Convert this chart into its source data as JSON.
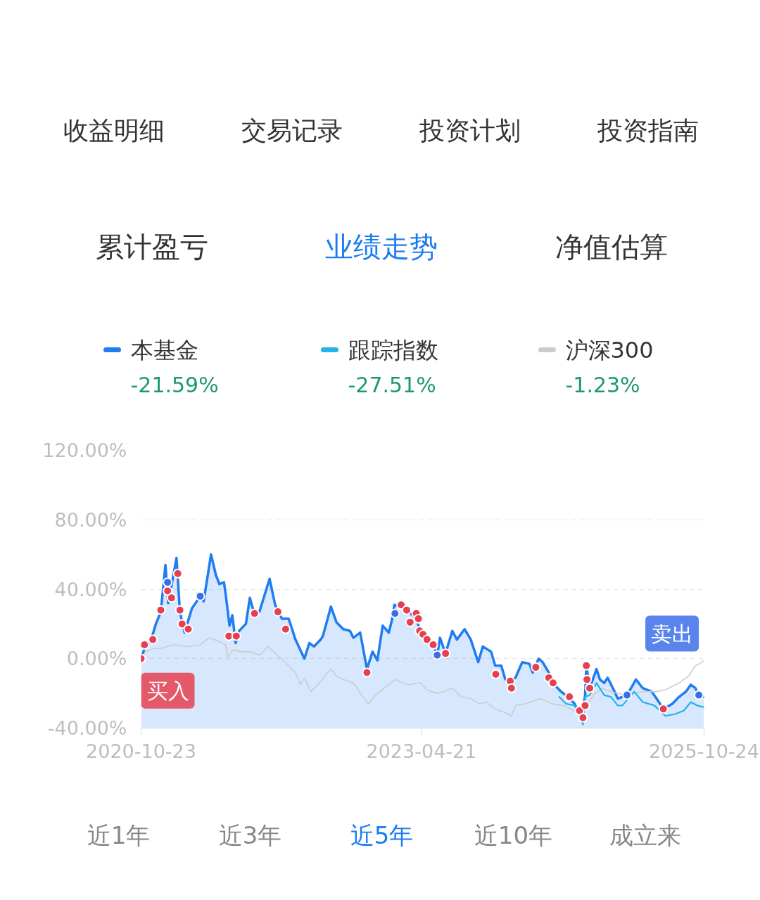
{
  "chart_data": {
    "type": "line",
    "title": "业绩走势",
    "annotations": [
      "收益明细",
      "交易记录",
      "投资计划",
      "投资指南",
      "累计盈亏",
      "净值估算",
      "-21.59%",
      "-27.51%",
      "-1.23%",
      "近1年",
      "近3年",
      "近5年",
      "近10年",
      "成立来",
      {
        "text": "买入",
        "x": "2020-10-23",
        "y": 0
      },
      {
        "text": "卖出",
        "x": "2025-10-07",
        "y": -21
      }
    ],
    "xlim": [
      "2020-10-23",
      "2025-10-24"
    ],
    "xticks": [
      "2020-10-23",
      "2023-04-21",
      "2025-10-24"
    ],
    "ylim": [
      -40,
      120
    ],
    "yticks": [
      {
        "value": -40,
        "label": "-40.00%"
      },
      {
        "value": 0,
        "label": "0.00%"
      },
      {
        "value": 40,
        "label": "40.00%"
      },
      {
        "value": 80,
        "label": "80.00%"
      },
      {
        "value": 120,
        "label": "120.00%"
      }
    ],
    "grid": "y",
    "legend": "top",
    "series": [
      {
        "name": "本基金",
        "type": "area",
        "color": "#1f7cf2",
        "x": [
          "2020-10-23",
          "2020-11-07",
          "2020-11-23",
          "2020-12-10",
          "2020-12-26",
          "2021-01-10",
          "2021-01-19",
          "2021-02-15",
          "2021-02-26",
          "2021-03-13",
          "2021-04-06",
          "2021-05-03",
          "2021-05-14",
          "2021-06-07",
          "2021-06-23",
          "2021-07-04",
          "2021-07-19",
          "2021-07-26",
          "2021-08-06",
          "2021-08-15",
          "2021-08-26",
          "2021-09-06",
          "2021-09-28",
          "2021-10-11",
          "2021-10-22",
          "2021-11-11",
          "2021-12-14",
          "2022-01-01",
          "2022-01-23",
          "2022-02-14",
          "2022-03-08",
          "2022-04-06",
          "2022-04-22",
          "2022-05-07",
          "2022-05-29",
          "2022-06-05",
          "2022-07-01",
          "2022-07-19",
          "2022-08-10",
          "2022-09-01",
          "2022-09-12",
          "2022-10-04",
          "2022-10-26",
          "2022-11-13",
          "2022-11-29",
          "2022-12-16",
          "2023-01-05",
          "2023-01-16",
          "2023-01-23",
          "2023-02-14",
          "2023-03-04",
          "2023-04-04",
          "2023-04-17",
          "2023-05-09",
          "2023-05-29",
          "2023-06-11",
          "2023-06-20",
          "2023-07-08",
          "2023-07-30",
          "2023-08-14",
          "2023-09-08",
          "2023-09-28",
          "2023-10-22",
          "2023-11-06",
          "2023-12-03",
          "2023-12-16",
          "2024-01-05",
          "2024-01-18",
          "2024-02-03",
          "2024-02-20",
          "2024-03-13",
          "2024-04-05",
          "2024-04-16",
          "2024-05-05",
          "2024-05-18",
          "2024-06-07",
          "2024-06-25",
          "2024-07-17",
          "2024-08-08",
          "2024-08-30",
          "2024-09-22",
          "2024-10-03",
          "2024-10-07",
          "2024-10-18",
          "2024-11-09",
          "2024-11-20",
          "2024-12-04",
          "2024-12-15",
          "2025-01-04",
          "2025-01-17",
          "2025-02-01",
          "2025-02-16",
          "2025-03-17",
          "2025-04-08",
          "2025-05-07",
          "2025-05-23",
          "2025-06-14",
          "2025-07-13",
          "2025-08-04",
          "2025-08-26",
          "2025-09-11",
          "2025-09-26",
          "2025-10-07",
          "2025-10-24"
        ],
        "values": [
          0,
          8,
          10,
          20,
          27,
          54,
          32,
          58,
          27,
          15,
          29,
          36,
          33,
          60,
          48,
          43,
          44,
          35,
          19,
          25,
          9,
          16,
          20,
          35,
          28,
          27,
          46,
          31,
          23,
          23,
          11,
          0,
          9,
          7,
          11,
          13,
          30,
          21,
          17,
          16,
          12,
          15,
          -6,
          4,
          -1,
          19,
          15,
          23,
          31,
          30,
          28,
          23,
          16,
          11,
          8,
          2,
          12,
          3,
          16,
          11,
          17,
          11,
          -2,
          7,
          4,
          -4,
          -4,
          -12,
          -13,
          -11,
          -2,
          -3,
          -8,
          0,
          -2,
          -8,
          -15,
          -19,
          -22,
          -26,
          -35,
          -21,
          -4,
          -17,
          -6,
          -12,
          -14,
          -11,
          -18,
          -23,
          -22,
          -21,
          -12,
          -17,
          -19,
          -23,
          -29,
          -26,
          -22,
          -19,
          -15,
          -17,
          -21,
          -22
        ]
      },
      {
        "name": "跟踪指数",
        "color": "#24b3ea",
        "x": [
          "2024-07-11",
          "2024-08-02",
          "2024-08-30",
          "2024-09-26",
          "2024-10-03",
          "2024-10-18",
          "2024-11-09",
          "2024-12-04",
          "2024-12-26",
          "2025-01-17",
          "2025-02-01",
          "2025-03-11",
          "2025-04-08",
          "2025-05-16",
          "2025-06-20",
          "2025-07-21",
          "2025-08-19",
          "2025-09-11",
          "2025-10-02",
          "2025-10-24"
        ],
        "values": [
          -22,
          -26,
          -27,
          -38,
          -22,
          -21,
          -14,
          -21,
          -22,
          -27,
          -27,
          -19,
          -25,
          -27,
          -33,
          -32,
          -30,
          -25,
          -27,
          -28
        ]
      },
      {
        "name": "沪深300",
        "color": "#cccccc",
        "x": [
          "2020-10-23",
          "2020-11-07",
          "2020-12-06",
          "2020-12-28",
          "2021-02-03",
          "2021-03-20",
          "2021-05-03",
          "2021-06-01",
          "2021-07-02",
          "2021-07-24",
          "2021-07-31",
          "2021-08-18",
          "2021-09-14",
          "2021-10-11",
          "2021-11-11",
          "2021-12-10",
          "2022-01-08",
          "2022-02-08",
          "2022-03-08",
          "2022-03-24",
          "2022-04-06",
          "2022-04-28",
          "2022-05-20",
          "2022-06-20",
          "2022-07-01",
          "2022-07-19",
          "2022-08-10",
          "2022-09-12",
          "2022-10-09",
          "2022-10-31",
          "2022-11-22",
          "2022-12-21",
          "2023-01-27",
          "2023-02-18",
          "2023-03-12",
          "2023-04-17",
          "2023-05-09",
          "2023-06-09",
          "2023-07-01",
          "2023-07-30",
          "2023-08-28",
          "2023-09-28",
          "2023-10-26",
          "2023-11-17",
          "2023-12-16",
          "2024-01-16",
          "2024-02-07",
          "2024-02-20",
          "2024-03-22",
          "2024-05-12",
          "2024-06-19",
          "2024-07-24",
          "2024-08-30",
          "2024-09-22",
          "2024-10-29",
          "2024-11-27",
          "2024-12-26",
          "2025-02-08",
          "2025-04-08",
          "2025-05-23",
          "2025-06-20",
          "2025-08-04",
          "2025-09-04",
          "2025-09-26",
          "2025-10-09",
          "2025-10-24"
        ],
        "values": [
          0,
          4,
          6,
          6,
          8,
          7,
          8,
          12,
          10,
          8,
          1,
          5,
          4,
          4,
          2,
          7,
          2,
          -3,
          -8,
          -15,
          -11,
          -19,
          -15,
          -8,
          -6,
          -10,
          -12,
          -14,
          -21,
          -26,
          -21,
          -17,
          -12,
          -14,
          -15,
          -14,
          -18,
          -20,
          -19,
          -17,
          -22,
          -23,
          -26,
          -25,
          -29,
          -31,
          -33,
          -27,
          -26,
          -23,
          -26,
          -27,
          -30,
          -33,
          -21,
          -17,
          -19,
          -21,
          -19,
          -19,
          -18,
          -14,
          -10,
          -4,
          -3,
          -1
        ]
      },
      {
        "type": "scatter",
        "marker": "circle",
        "color": "#e5404f",
        "x": [
          "2020-10-23",
          "2020-11-03",
          "2020-11-30",
          "2020-12-26",
          "2021-01-17",
          "2021-01-30",
          "2021-02-19",
          "2021-02-26",
          "2021-03-05",
          "2021-03-25",
          "2021-08-04",
          "2021-08-28",
          "2021-10-26",
          "2022-01-10",
          "2022-02-04",
          "2022-10-26",
          "2023-02-14",
          "2023-03-04",
          "2023-03-15",
          "2023-04-04",
          "2023-04-11",
          "2023-04-15",
          "2023-04-26",
          "2023-05-09",
          "2023-05-29",
          "2023-07-08",
          "2023-12-18",
          "2024-02-03",
          "2024-02-07",
          "2024-04-26",
          "2024-06-07",
          "2024-06-21",
          "2024-08-13",
          "2024-09-15",
          "2024-09-26",
          "2024-10-03",
          "2024-10-07",
          "2024-10-09",
          "2024-10-18",
          "2025-06-14"
        ],
        "values": [
          0,
          8,
          11,
          28,
          39,
          35,
          49,
          28,
          20,
          17,
          13,
          13,
          26,
          27,
          17,
          -8,
          31,
          28,
          21,
          26,
          23,
          16,
          14,
          11,
          8,
          3,
          -9,
          -13,
          -17,
          -5,
          -11,
          -14,
          -22,
          -30,
          -34,
          -27,
          -4,
          -12,
          -17,
          -29
        ]
      },
      {
        "type": "scatter",
        "marker": "circle",
        "color": "#3b6fe8",
        "x": [
          "2021-01-17",
          "2021-05-03",
          "2023-01-25",
          "2023-06-11",
          "2025-02-16",
          "2025-10-07"
        ],
        "values": [
          44,
          36,
          26,
          2,
          -21,
          -21
        ]
      }
    ]
  }
}
